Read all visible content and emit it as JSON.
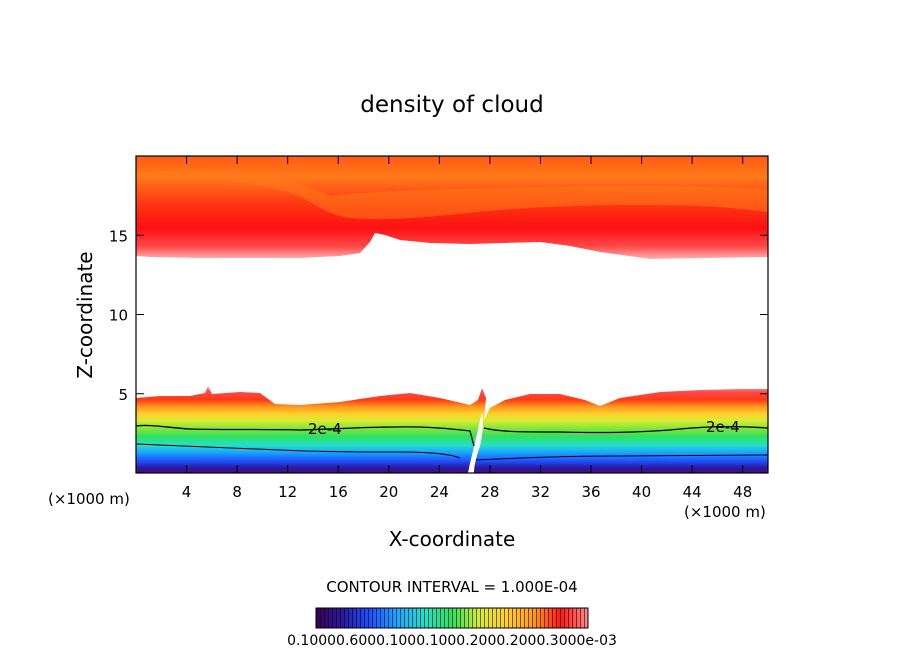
{
  "chart_data": {
    "type": "heatmap",
    "title": "density of cloud",
    "xlabel": "X-coordinate",
    "ylabel": "Z-coordinate",
    "x_unit_label_left": "(×1000 m)",
    "x_unit_label_right": "(×1000 m)",
    "xlim": [
      0,
      50
    ],
    "ylim": [
      0,
      20
    ],
    "x_ticks": [
      4,
      8,
      12,
      16,
      20,
      24,
      28,
      32,
      36,
      40,
      44,
      48
    ],
    "y_ticks": [
      5,
      10,
      15
    ],
    "contour_interval_text": "CONTOUR INTERVAL = 1.000E-04",
    "contour_label": "2e-4",
    "colorbar_labels_text": "0.10000.6000.1000.1000.2000.2000.3000e-03",
    "colorbar_colors": [
      "#3a0058",
      "#2a1aa0",
      "#1f52ff",
      "#1aa8ff",
      "#24e0c8",
      "#30e060",
      "#8ae63a",
      "#d8ec34",
      "#ffd02a",
      "#ff9a1e",
      "#ff5a14",
      "#ff1a10",
      "#ff8a8a"
    ],
    "cloud_layers": [
      {
        "name": "upper",
        "z_base_range": [
          13.6,
          15.0
        ],
        "z_top": 20,
        "peak_z": 15.5
      },
      {
        "name": "lower",
        "z_base": 0.3,
        "z_top_range": [
          4.0,
          5.5
        ],
        "contour_2e-4_z": 3.0
      }
    ]
  }
}
